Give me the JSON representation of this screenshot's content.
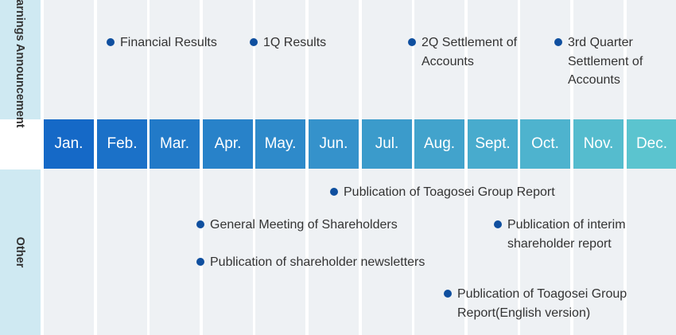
{
  "rows": {
    "earnings": "Earnings\nAnnouncement",
    "other": "Other"
  },
  "months": [
    "Jan.",
    "Feb.",
    "Mar.",
    "Apr.",
    "May.",
    "Jun.",
    "Jul.",
    "Aug.",
    "Sept.",
    "Oct.",
    "Nov.",
    "Dec."
  ],
  "colors": {
    "dot": "#0f4f9f",
    "bar_start": "#1569c7",
    "bar_end": "#5bc4cf",
    "column_bg": "#eef1f4",
    "row_header_bg": "#cfe9f2"
  },
  "earnings_events": [
    {
      "month": "Feb.",
      "text": "Financial Results"
    },
    {
      "month": "May.",
      "text": "1Q Results"
    },
    {
      "month": "Aug.",
      "text": "2Q Settlement of\nAccounts"
    },
    {
      "month": "Nov.",
      "text": "3rd Quarter\nSettlement of\nAccounts"
    }
  ],
  "other_events": [
    {
      "month": "Jun.",
      "text": "Publication of Toagosei Group Report"
    },
    {
      "month": "Apr.",
      "text": "General Meeting of Shareholders"
    },
    {
      "month": "Oct.",
      "text": "Publication of interim\nshareholder report"
    },
    {
      "month": "Apr.",
      "text": "Publication of shareholder newsletters"
    },
    {
      "month": "Aug.",
      "text": "Publication of Toagosei Group\nReport(English version)"
    }
  ]
}
